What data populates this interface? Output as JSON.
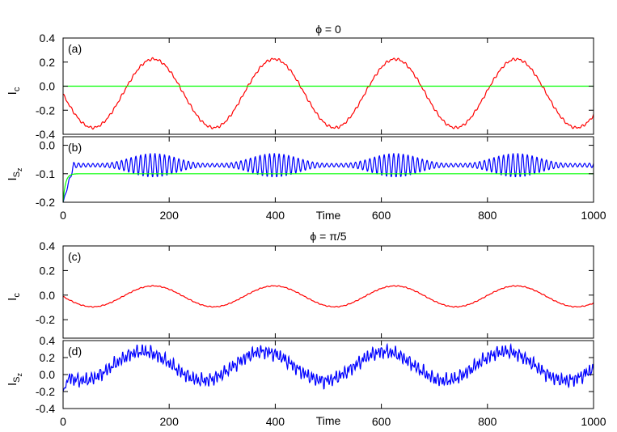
{
  "chart_data": [
    {
      "id": "a",
      "type": "line",
      "title": "ϕ = 0",
      "panel_label": "(a)",
      "ylabel": "I",
      "ylabel_sub": "c",
      "xlabel": "",
      "xlim": [
        0,
        1000
      ],
      "ylim": [
        -0.4,
        0.4
      ],
      "yticks": [
        0.4,
        0.2,
        0.0,
        -0.2,
        -0.4
      ],
      "ytick_labels": [
        "0.4",
        "0.2",
        "0.0",
        "-0.2",
        "-0.4"
      ],
      "xticks": [
        0,
        200,
        400,
        600,
        800,
        1000
      ],
      "xtick_labels": [],
      "series": [
        {
          "kind": "wave",
          "color": "#ff0000",
          "offset": -0.06,
          "amp": 0.285,
          "period": 228,
          "phase_at": 170,
          "ripple": 0.012,
          "ripple_period": 9
        },
        {
          "kind": "const",
          "color": "#00ff00",
          "value": 0.0
        }
      ]
    },
    {
      "id": "b",
      "type": "line",
      "title": "",
      "panel_label": "(b)",
      "ylabel": "I",
      "ylabel_sub": "S",
      "ylabel_subsub": "z",
      "xlabel": "Time",
      "xlim": [
        0,
        1000
      ],
      "ylim": [
        -0.2,
        0.03
      ],
      "yticks": [
        0.0,
        -0.1,
        -0.2
      ],
      "ytick_labels": [
        "0.0",
        "-0.1",
        "-0.2"
      ],
      "xticks": [
        0,
        200,
        400,
        600,
        800,
        1000
      ],
      "xtick_labels": [
        "0",
        "200",
        "400",
        "600",
        "800",
        "1000"
      ],
      "series": [
        {
          "kind": "beat",
          "color": "#0000ff",
          "offset": -0.07,
          "amp": 0.035,
          "fast_period": 9,
          "period": 228,
          "phase_at": 170,
          "start": -0.2
        },
        {
          "kind": "step",
          "color": "#00ff00",
          "value": -0.1,
          "start": -0.2,
          "rise": 18
        }
      ]
    },
    {
      "id": "c",
      "type": "line",
      "title": "ϕ = π/5",
      "panel_label": "(c)",
      "ylabel": "I",
      "ylabel_sub": "c",
      "xlabel": "",
      "xlim": [
        0,
        1000
      ],
      "ylim": [
        -0.35,
        0.4
      ],
      "yticks": [
        0.4,
        0.2,
        0.0,
        -0.2
      ],
      "ytick_labels": [
        "0.4",
        "0.2",
        "0.0",
        "-0.2"
      ],
      "xticks": [
        0,
        200,
        400,
        600,
        800,
        1000
      ],
      "xtick_labels": [],
      "series": [
        {
          "kind": "wave",
          "color": "#ff0000",
          "offset": -0.01,
          "amp": 0.085,
          "period": 228,
          "phase_at": 170,
          "ripple": 0.004,
          "ripple_period": 9
        }
      ]
    },
    {
      "id": "d",
      "type": "line",
      "title": "",
      "panel_label": "(d)",
      "ylabel": "I",
      "ylabel_sub": "S",
      "ylabel_subsub": "z",
      "xlabel": "Time",
      "xlim": [
        0,
        1000
      ],
      "ylim": [
        -0.4,
        0.4
      ],
      "yticks": [
        0.4,
        0.2,
        0.0,
        -0.2,
        -0.4
      ],
      "ytick_labels": [
        "0.4",
        "0.2",
        "0.0",
        "-0.2",
        "-0.4"
      ],
      "xticks": [
        0,
        200,
        400,
        600,
        800,
        1000
      ],
      "xtick_labels": [
        "0",
        "200",
        "400",
        "600",
        "800",
        "1000"
      ],
      "series": [
        {
          "kind": "noisy",
          "color": "#0000ff",
          "offset": 0.1,
          "amp": 0.17,
          "noise": 0.11,
          "period": 228,
          "phase_at": 150,
          "start": -0.2
        }
      ]
    }
  ]
}
